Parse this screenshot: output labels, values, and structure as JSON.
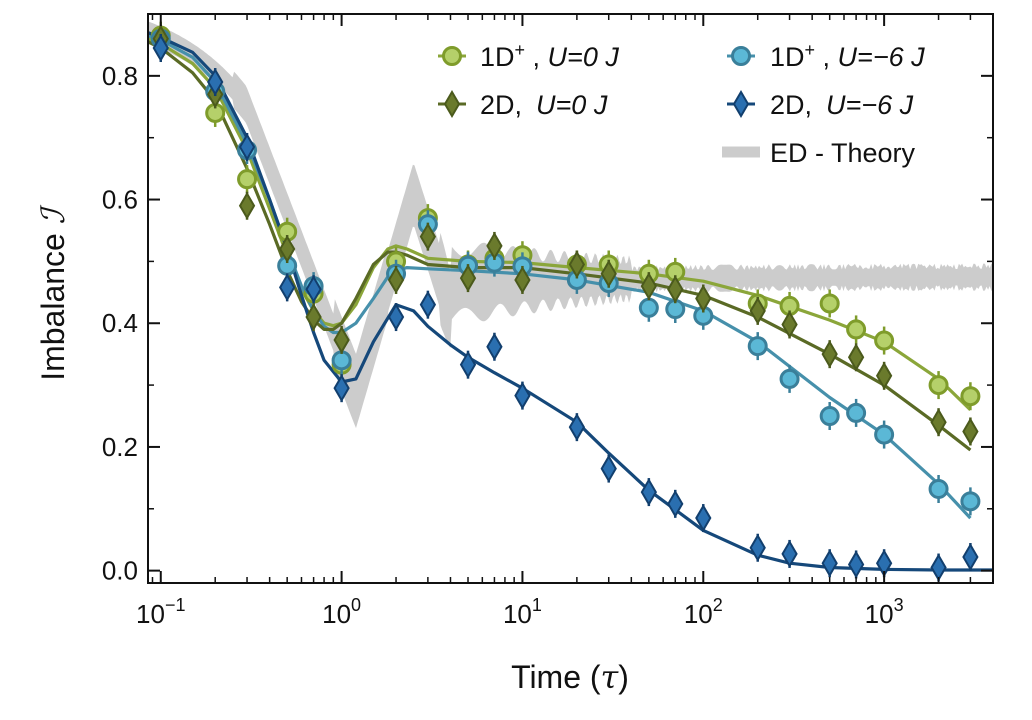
{
  "chart_data": {
    "type": "scatter",
    "xlabel_main": "Time (",
    "xlabel_symbol": "τ",
    "xlabel_close": ")",
    "ylabel_main": "Imbalance ",
    "ylabel_symbol": "ℐ",
    "xscale": "log",
    "xlim": [
      0.085,
      4000
    ],
    "ylim": [
      -0.02,
      0.9
    ],
    "x_ticks": [
      {
        "value": 0.1,
        "base": "10",
        "exp": "−1"
      },
      {
        "value": 1,
        "base": "10",
        "exp": "0"
      },
      {
        "value": 10,
        "base": "10",
        "exp": "1"
      },
      {
        "value": 100,
        "base": "10",
        "exp": "2"
      },
      {
        "value": 1000,
        "base": "10",
        "exp": "3"
      }
    ],
    "y_ticks": [
      {
        "value": 0.0,
        "label": "0.0"
      },
      {
        "value": 0.2,
        "label": "0.2"
      },
      {
        "value": 0.4,
        "label": "0.4"
      },
      {
        "value": 0.6,
        "label": "0.6"
      },
      {
        "value": 0.8,
        "label": "0.8"
      }
    ],
    "grid": false,
    "legend_position": "top-right",
    "series": [
      {
        "name_prefix": "1D",
        "name_sup": "+",
        "name_cond": "U=0 J",
        "marker": "circle",
        "color_fill": "#b5d06a",
        "color_edge": "#7f9c2b",
        "color_line": "#8ba63a",
        "x": [
          0.1,
          0.2,
          0.3,
          0.5,
          0.7,
          1,
          2,
          3,
          5,
          7,
          10,
          20,
          30,
          50,
          70,
          200,
          300,
          500,
          700,
          1000,
          2000,
          3000
        ],
        "y": [
          0.865,
          0.74,
          0.633,
          0.548,
          0.448,
          0.333,
          0.5,
          0.57,
          0.495,
          0.505,
          0.51,
          0.495,
          0.495,
          0.48,
          0.483,
          0.432,
          0.428,
          0.432,
          0.39,
          0.372,
          0.3,
          0.282
        ],
        "fit_x": [
          0.085,
          0.1,
          0.15,
          0.2,
          0.3,
          0.4,
          0.5,
          0.6,
          0.7,
          0.8,
          0.9,
          1.0,
          1.2,
          1.5,
          1.8,
          2.0,
          2.3,
          3,
          5,
          10,
          20,
          50,
          100,
          200,
          500,
          1000,
          2000,
          3000
        ],
        "fit_y": [
          0.86,
          0.852,
          0.82,
          0.78,
          0.68,
          0.585,
          0.51,
          0.455,
          0.42,
          0.4,
          0.396,
          0.4,
          0.43,
          0.49,
          0.52,
          0.525,
          0.52,
          0.505,
          0.5,
          0.498,
          0.49,
          0.48,
          0.468,
          0.445,
          0.405,
          0.37,
          0.31,
          0.26
        ]
      },
      {
        "name_prefix": "1D",
        "name_sup": "+",
        "name_cond": "U=−6 J",
        "marker": "circle",
        "color_fill": "#5bb8d6",
        "color_edge": "#3a7f9a",
        "color_line": "#4690ab",
        "x": [
          0.1,
          0.2,
          0.3,
          0.5,
          0.7,
          1,
          2,
          3,
          5,
          7,
          10,
          20,
          30,
          50,
          70,
          100,
          200,
          300,
          500,
          700,
          1000,
          2000,
          3000
        ],
        "y": [
          0.86,
          0.775,
          0.68,
          0.493,
          0.46,
          0.34,
          0.48,
          0.56,
          0.493,
          0.498,
          0.492,
          0.47,
          0.465,
          0.425,
          0.423,
          0.412,
          0.363,
          0.31,
          0.25,
          0.255,
          0.22,
          0.132,
          0.112
        ],
        "fit_x": [
          0.085,
          0.1,
          0.15,
          0.2,
          0.3,
          0.4,
          0.5,
          0.6,
          0.7,
          0.8,
          0.9,
          1.0,
          1.2,
          1.5,
          1.8,
          2.0,
          2.3,
          3,
          5,
          10,
          20,
          50,
          100,
          200,
          500,
          1000,
          2000,
          3000
        ],
        "fit_y": [
          0.865,
          0.858,
          0.83,
          0.79,
          0.69,
          0.6,
          0.52,
          0.46,
          0.42,
          0.395,
          0.385,
          0.385,
          0.4,
          0.44,
          0.475,
          0.485,
          0.49,
          0.488,
          0.485,
          0.48,
          0.47,
          0.45,
          0.42,
          0.37,
          0.28,
          0.22,
          0.14,
          0.085
        ]
      },
      {
        "name_prefix": "2D,",
        "name_sup": "",
        "name_cond": "U=0 J",
        "marker": "diamond",
        "color_fill": "#6a7a2c",
        "color_edge": "#4b5a1c",
        "color_line": "#5a6a25",
        "x": [
          0.1,
          0.2,
          0.3,
          0.5,
          0.7,
          1,
          2,
          3,
          5,
          7,
          10,
          20,
          30,
          50,
          70,
          100,
          200,
          300,
          500,
          700,
          1000,
          2000,
          3000
        ],
        "y": [
          0.86,
          0.77,
          0.59,
          0.52,
          0.41,
          0.373,
          0.47,
          0.54,
          0.473,
          0.525,
          0.47,
          0.495,
          0.48,
          0.46,
          0.455,
          0.44,
          0.42,
          0.398,
          0.35,
          0.345,
          0.315,
          0.24,
          0.225
        ],
        "fit_x": [
          0.085,
          0.1,
          0.15,
          0.2,
          0.3,
          0.4,
          0.5,
          0.6,
          0.7,
          0.8,
          0.9,
          1.0,
          1.2,
          1.5,
          1.8,
          2.0,
          2.3,
          3,
          5,
          10,
          20,
          50,
          100,
          200,
          500,
          1000,
          2000,
          3000
        ],
        "fit_y": [
          0.855,
          0.845,
          0.805,
          0.76,
          0.65,
          0.56,
          0.485,
          0.435,
          0.405,
          0.39,
          0.39,
          0.4,
          0.44,
          0.495,
          0.515,
          0.515,
          0.51,
          0.495,
          0.49,
          0.49,
          0.48,
          0.465,
          0.445,
          0.41,
          0.35,
          0.3,
          0.235,
          0.195
        ]
      },
      {
        "name_prefix": "2D,",
        "name_sup": "",
        "name_cond": "U=−6 J",
        "marker": "diamond",
        "color_fill": "#2a6fb0",
        "color_edge": "#123f6e",
        "color_line": "#15487a",
        "x": [
          0.1,
          0.2,
          0.3,
          0.5,
          0.7,
          1,
          2,
          3,
          5,
          7,
          10,
          20,
          30,
          50,
          70,
          100,
          200,
          300,
          500,
          700,
          1000,
          2000,
          3000
        ],
        "y": [
          0.845,
          0.79,
          0.685,
          0.458,
          0.455,
          0.295,
          0.41,
          0.43,
          0.333,
          0.362,
          0.283,
          0.232,
          0.165,
          0.127,
          0.108,
          0.085,
          0.037,
          0.027,
          0.012,
          0.01,
          0.012,
          0.005,
          0.022
        ],
        "fit_x": [
          0.085,
          0.1,
          0.15,
          0.2,
          0.3,
          0.4,
          0.5,
          0.6,
          0.7,
          0.8,
          1.0,
          1.2,
          1.5,
          2.0,
          2.5,
          3,
          4,
          5,
          7,
          10,
          20,
          30,
          50,
          100,
          200,
          300,
          500,
          1000,
          2000,
          3000,
          4000
        ],
        "fit_y": [
          0.87,
          0.862,
          0.838,
          0.8,
          0.7,
          0.6,
          0.52,
          0.445,
          0.385,
          0.34,
          0.305,
          0.31,
          0.37,
          0.43,
          0.42,
          0.395,
          0.365,
          0.345,
          0.32,
          0.295,
          0.24,
          0.19,
          0.13,
          0.065,
          0.025,
          0.012,
          0.005,
          0.002,
          0.001,
          0.001,
          0.001
        ]
      }
    ],
    "theory": {
      "name": "ED - Theory",
      "color": "#cccccc"
    }
  }
}
